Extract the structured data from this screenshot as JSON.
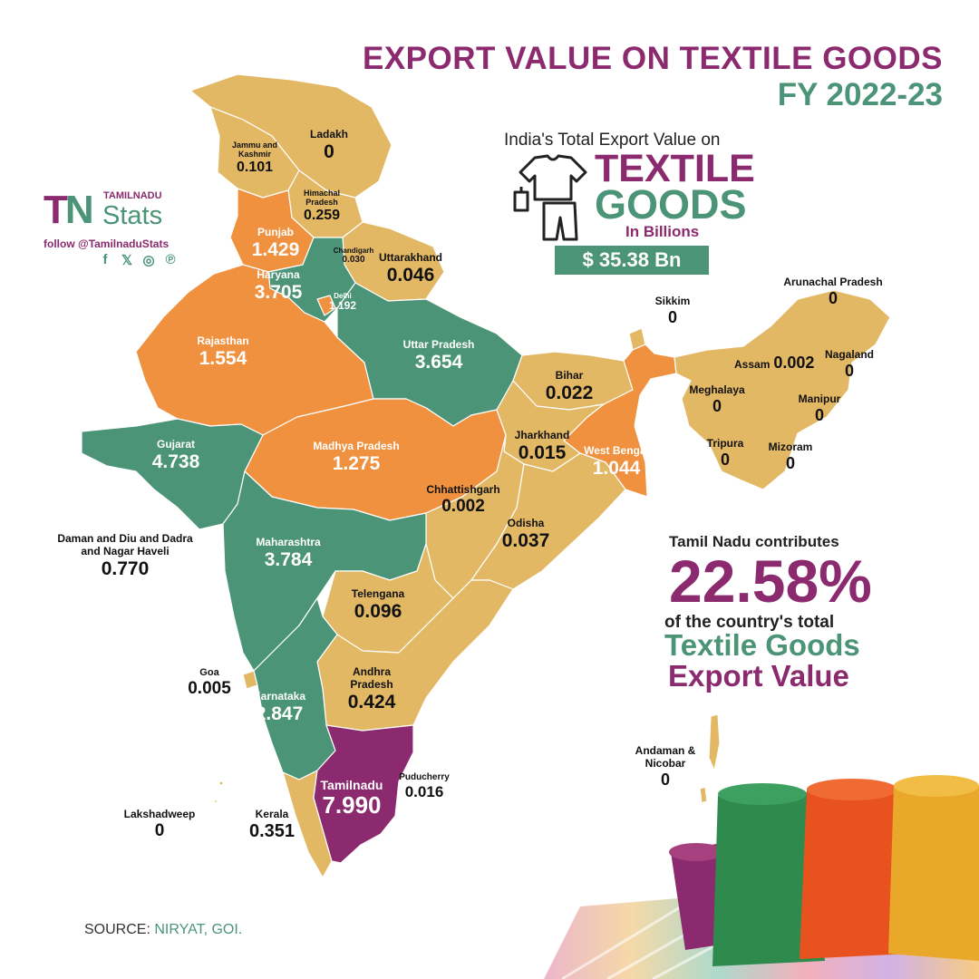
{
  "header": {
    "title_line1": "EXPORT VALUE ON TEXTILE GOODS",
    "title_line2": "FY 2022-23"
  },
  "brand": {
    "small": "TAMILNADU",
    "logo_t": "T",
    "logo_n": "N",
    "name": "Stats",
    "follow": "follow @TamilnaduStats",
    "social_icons": [
      "facebook-icon",
      "x-icon",
      "instagram-icon",
      "pinterest-icon"
    ],
    "social_glyphs": [
      "f",
      "𝕏",
      "◎",
      "℗"
    ]
  },
  "total_box": {
    "heading": "India's Total Export Value on",
    "word1": "TEXTILE",
    "word2": "GOODS",
    "unit": "In Billions",
    "value": "$ 35.38 Bn"
  },
  "highlight": {
    "line1": "Tamil Nadu contributes",
    "percent": "22.58%",
    "line2": "of the country's total",
    "line3": "Textile Goods",
    "line4": "Export Value"
  },
  "source": {
    "label": "SOURCE:",
    "value": "NIRYAT, GOI."
  },
  "colors": {
    "purple": "#8b2a6e",
    "green": "#4b9478",
    "orange": "#f0913f",
    "tan": "#e3b865"
  },
  "regions": [
    {
      "name": "Ladakh",
      "value": "0"
    },
    {
      "name": "Jammu and Kashmir",
      "value": "0.101"
    },
    {
      "name": "Himachal Pradesh",
      "value": "0.259"
    },
    {
      "name": "Punjab",
      "value": "1.429"
    },
    {
      "name": "Chandigarh",
      "value": "0.030"
    },
    {
      "name": "Uttarakhand",
      "value": "0.046"
    },
    {
      "name": "Haryana",
      "value": "3.705"
    },
    {
      "name": "Delhi",
      "value": "1.192"
    },
    {
      "name": "Rajasthan",
      "value": "1.554"
    },
    {
      "name": "Uttar Pradesh",
      "value": "3.654"
    },
    {
      "name": "Sikkim",
      "value": "0"
    },
    {
      "name": "Arunachal Pradesh",
      "value": "0"
    },
    {
      "name": "Assam",
      "value": "0.002"
    },
    {
      "name": "Nagaland",
      "value": "0"
    },
    {
      "name": "Meghalaya",
      "value": "0"
    },
    {
      "name": "Manipur",
      "value": "0"
    },
    {
      "name": "Bihar",
      "value": "0.022"
    },
    {
      "name": "Gujarat",
      "value": "4.738"
    },
    {
      "name": "Madhya Pradesh",
      "value": "1.275"
    },
    {
      "name": "Jharkhand",
      "value": "0.015"
    },
    {
      "name": "West Bengal",
      "value": "1.044"
    },
    {
      "name": "Tripura",
      "value": "0"
    },
    {
      "name": "Mizoram",
      "value": "0"
    },
    {
      "name": "Chhattishgarh",
      "value": "0.002"
    },
    {
      "name": "Odisha",
      "value": "0.037"
    },
    {
      "name": "Daman and Diu and Dadra and Nagar Haveli",
      "value": "0.770"
    },
    {
      "name": "Maharashtra",
      "value": "3.784"
    },
    {
      "name": "Telengana",
      "value": "0.096"
    },
    {
      "name": "Goa",
      "value": "0.005"
    },
    {
      "name": "Andhra Pradesh",
      "value": "0.424"
    },
    {
      "name": "Karnataka",
      "value": "2.847"
    },
    {
      "name": "Andaman & Nicobar",
      "value": "0"
    },
    {
      "name": "Puducherry",
      "value": "0.016"
    },
    {
      "name": "Tamilnadu",
      "value": "7.990"
    },
    {
      "name": "Lakshadweep",
      "value": "0"
    },
    {
      "name": "Kerala",
      "value": "0.351"
    }
  ]
}
